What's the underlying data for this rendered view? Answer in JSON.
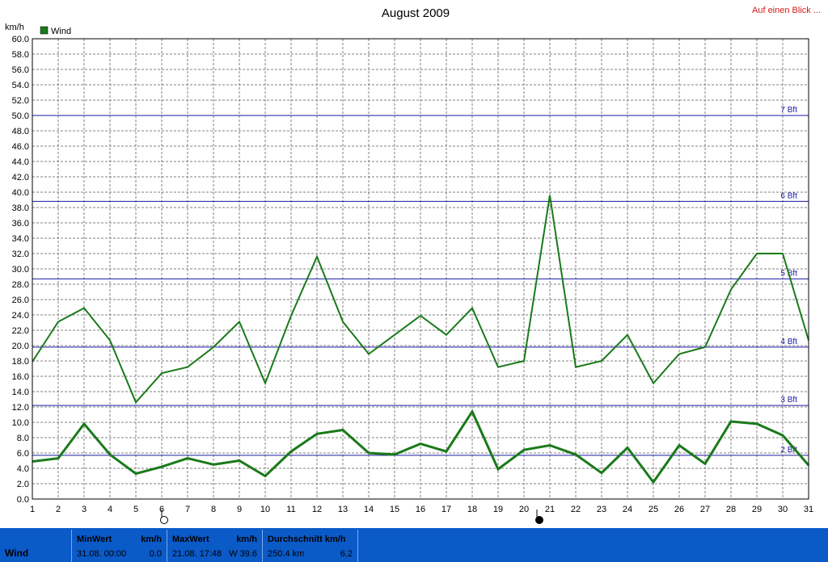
{
  "header": {
    "title": "August 2009",
    "link": "Auf einen Blick ..."
  },
  "chart_data": {
    "type": "line",
    "title": "August 2009",
    "ylabel": "km/h",
    "ylim": [
      0,
      60
    ],
    "y_ticks": [
      "0.0",
      "2.0",
      "4.0",
      "6.0",
      "8.0",
      "10.0",
      "12.0",
      "14.0",
      "16.0",
      "18.0",
      "20.0",
      "22.0",
      "24.0",
      "26.0",
      "28.0",
      "30.0",
      "32.0",
      "34.0",
      "36.0",
      "38.0",
      "40.0",
      "42.0",
      "44.0",
      "46.0",
      "48.0",
      "50.0",
      "52.0",
      "54.0",
      "56.0",
      "58.0",
      "60.0"
    ],
    "x": [
      1,
      2,
      3,
      4,
      5,
      6,
      7,
      8,
      9,
      10,
      11,
      12,
      13,
      14,
      15,
      16,
      17,
      18,
      19,
      20,
      21,
      22,
      23,
      24,
      25,
      26,
      27,
      28,
      29,
      30,
      31
    ],
    "x_ticks": [
      "1",
      "2",
      "3",
      "4",
      "5",
      "6",
      "7",
      "8",
      "9",
      "10",
      "11",
      "12",
      "13",
      "14",
      "15",
      "16",
      "17",
      "18",
      "19",
      "20",
      "21",
      "22",
      "23",
      "24",
      "25",
      "26",
      "27",
      "28",
      "29",
      "30",
      "31"
    ],
    "grid": true,
    "legend": {
      "placement": "top-left",
      "entries": [
        "Wind"
      ]
    },
    "series": [
      {
        "name": "Wind",
        "color": "#1a7a1a",
        "values": [
          17.9,
          23.1,
          24.9,
          20.7,
          12.6,
          16.4,
          17.2,
          19.8,
          23.1,
          15.1,
          23.9,
          31.6,
          23.1,
          18.9,
          21.4,
          23.9,
          21.4,
          24.9,
          17.2,
          18.0,
          39.6,
          17.2,
          18.0,
          21.4,
          15.1,
          18.9,
          19.8,
          27.3,
          32.0,
          32.0,
          20.7
        ]
      },
      {
        "color": "#1a7a1a",
        "values": [
          4.9,
          5.3,
          9.8,
          5.8,
          3.3,
          4.2,
          5.3,
          4.5,
          5.0,
          3.0,
          6.2,
          8.5,
          9.0,
          6.0,
          5.8,
          7.2,
          6.2,
          11.4,
          3.9,
          6.4,
          7.0,
          5.8,
          3.4,
          6.7,
          2.2,
          7.0,
          4.6,
          10.1,
          9.8,
          8.3,
          4.4
        ]
      }
    ],
    "reference_lines": [
      {
        "label": "2 Bft",
        "value": 5.7
      },
      {
        "label": "3 Bft",
        "value": 12.2
      },
      {
        "label": "4 Bft",
        "value": 19.8
      },
      {
        "label": "5 Bft",
        "value": 28.7
      },
      {
        "label": "6 Bft",
        "value": 38.8
      },
      {
        "label": "7 Bft",
        "value": 50.0
      }
    ],
    "reference_color": "#1a1aa8",
    "moon_phases": [
      {
        "day": 6,
        "phase": "full-moon-icon"
      },
      {
        "day": 20.5,
        "phase": "new-moon-icon"
      }
    ]
  },
  "footer": {
    "label": "Wind",
    "min": {
      "title": "MinWert",
      "unit": "km/h",
      "when": "31.08.  00:00",
      "value": "0.0"
    },
    "max": {
      "title": "MaxWert",
      "unit": "km/h",
      "when": "21.08.  17:48",
      "value": "W 39.6"
    },
    "avg": {
      "title": "Durchschnitt km/h",
      "when": "250.4 km",
      "value": "6.2"
    }
  }
}
